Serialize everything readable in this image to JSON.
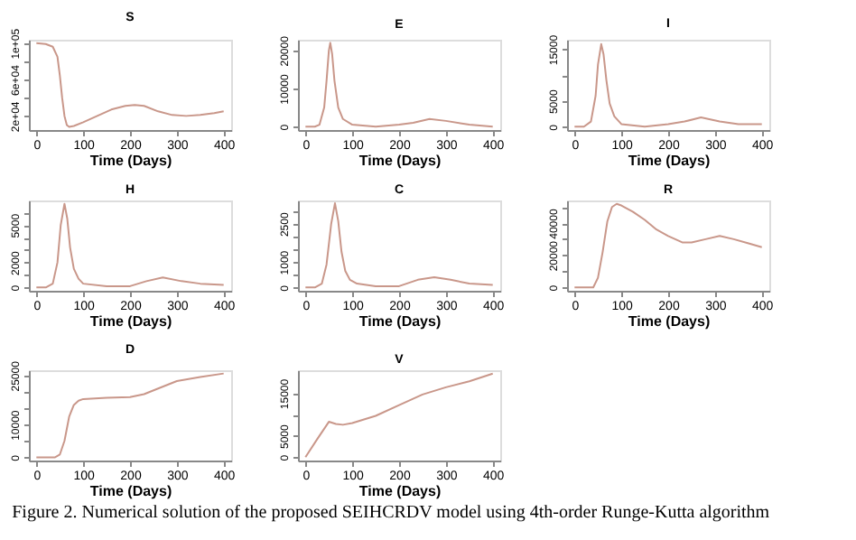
{
  "chart_data": [
    {
      "type": "line",
      "title": "S",
      "xlabel": "Time (Days)",
      "color": "#c9978a",
      "xlim": [
        -16,
        416
      ],
      "xticks": [
        0,
        100,
        200,
        300,
        400
      ],
      "ylim": [
        4500,
        103700
      ],
      "yticks": [
        {
          "value": 20000,
          "label": "2e+04"
        },
        {
          "value": 40000,
          "label": null
        },
        {
          "value": 60000,
          "label": "6e+04"
        },
        {
          "value": 80000,
          "label": null
        },
        {
          "value": 100000,
          "label": "1e+05"
        }
      ],
      "grid": false,
      "x": [
        0,
        20,
        35,
        45,
        50,
        55,
        60,
        65,
        70,
        80,
        100,
        130,
        160,
        190,
        210,
        230,
        260,
        290,
        320,
        350,
        380,
        400
      ],
      "values": [
        100000,
        99000,
        96000,
        85000,
        65000,
        40000,
        20000,
        10000,
        8000,
        9000,
        13000,
        20000,
        27000,
        31000,
        32000,
        31000,
        25000,
        21000,
        20000,
        21000,
        23000,
        25000
      ]
    },
    {
      "type": "line",
      "title": "E",
      "xlabel": "Time (Days)",
      "color": "#c9978a",
      "xlim": [
        -16,
        416
      ],
      "xticks": [
        0,
        100,
        200,
        300,
        400
      ],
      "ylim": [
        -900,
        22800
      ],
      "yticks": [
        0,
        10000,
        20000
      ],
      "grid": false,
      "x": [
        0,
        20,
        30,
        40,
        45,
        50,
        53,
        57,
        62,
        70,
        80,
        100,
        150,
        200,
        230,
        265,
        300,
        350,
        400
      ],
      "values": [
        0,
        0,
        500,
        5000,
        12000,
        20000,
        22000,
        19000,
        12000,
        5000,
        2000,
        500,
        0,
        500,
        1000,
        2000,
        1500,
        500,
        0
      ]
    },
    {
      "type": "line",
      "title": "I",
      "xlabel": "Time (Days)",
      "color": "#c9978a",
      "xlim": [
        -16,
        416
      ],
      "xticks": [
        0,
        100,
        200,
        300,
        400
      ],
      "ylim": [
        -650,
        16850
      ],
      "yticks": [
        0,
        5000,
        {
          "value": 10000,
          "label": null
        },
        15000
      ],
      "grid": false,
      "x": [
        0,
        20,
        35,
        45,
        50,
        57,
        62,
        68,
        75,
        85,
        100,
        150,
        200,
        235,
        270,
        310,
        350,
        400
      ],
      "values": [
        0,
        0,
        1000,
        6000,
        12000,
        16000,
        14000,
        9000,
        4500,
        2000,
        500,
        0,
        500,
        1000,
        1800,
        1000,
        500,
        500
      ]
    },
    {
      "type": "line",
      "title": "H",
      "xlabel": "Time (Days)",
      "color": "#c9978a",
      "xlim": [
        -16,
        416
      ],
      "xticks": [
        0,
        100,
        200,
        300,
        400
      ],
      "ylim": [
        -270,
        6970
      ],
      "yticks": [
        0,
        {
          "value": 1000,
          "label": null
        },
        2000,
        {
          "value": 3000,
          "label": null
        },
        {
          "value": 4000,
          "label": null
        },
        5000,
        {
          "value": 6000,
          "label": null
        }
      ],
      "grid": false,
      "x": [
        0,
        20,
        35,
        45,
        52,
        60,
        66,
        72,
        80,
        90,
        100,
        150,
        200,
        235,
        270,
        310,
        350,
        400
      ],
      "values": [
        0,
        0,
        300,
        2000,
        5000,
        6700,
        5500,
        3200,
        1500,
        700,
        300,
        100,
        100,
        500,
        800,
        500,
        300,
        200
      ]
    },
    {
      "type": "line",
      "title": "C",
      "xlabel": "Time (Days)",
      "color": "#c9978a",
      "xlim": [
        -16,
        416
      ],
      "xticks": [
        0,
        100,
        200,
        300,
        400
      ],
      "ylim": [
        -130,
        3410
      ],
      "yticks": [
        0,
        {
          "value": 500,
          "label": null
        },
        1000,
        {
          "value": 1500,
          "label": null
        },
        {
          "value": 2000,
          "label": null
        },
        2500,
        {
          "value": 3000,
          "label": null
        }
      ],
      "grid": false,
      "x": [
        0,
        20,
        35,
        45,
        55,
        63,
        70,
        77,
        85,
        95,
        110,
        150,
        200,
        240,
        275,
        310,
        350,
        400
      ],
      "values": [
        0,
        0,
        150,
        900,
        2500,
        3300,
        2600,
        1400,
        650,
        300,
        150,
        50,
        50,
        300,
        400,
        300,
        150,
        100
      ]
    },
    {
      "type": "line",
      "title": "R",
      "xlabel": "Time (Days)",
      "color": "#c9978a",
      "xlim": [
        -16,
        416
      ],
      "xticks": [
        0,
        100,
        200,
        300,
        400
      ],
      "ylim": [
        -2100,
        54100
      ],
      "yticks": [
        0,
        {
          "value": 10000,
          "label": null
        },
        20000,
        {
          "value": 30000,
          "label": null
        },
        40000,
        {
          "value": 50000,
          "label": null
        }
      ],
      "grid": false,
      "x": [
        0,
        30,
        40,
        50,
        60,
        70,
        80,
        90,
        100,
        125,
        150,
        175,
        200,
        230,
        250,
        280,
        310,
        340,
        370,
        400
      ],
      "values": [
        0,
        0,
        0,
        6000,
        22000,
        41000,
        50000,
        52000,
        51000,
        47000,
        42000,
        36000,
        32000,
        28000,
        28000,
        30000,
        32000,
        30000,
        27500,
        25000
      ]
    },
    {
      "type": "line",
      "title": "D",
      "xlabel": "Time (Days)",
      "color": "#c9978a",
      "xlim": [
        -16,
        416
      ],
      "xticks": [
        0,
        100,
        200,
        300,
        400
      ],
      "ylim": [
        -1000,
        26600
      ],
      "yticks": [
        0,
        {
          "value": 5000,
          "label": null
        },
        10000,
        {
          "value": 15000,
          "label": null
        },
        {
          "value": 20000,
          "label": null
        },
        25000
      ],
      "grid": false,
      "x": [
        0,
        40,
        50,
        60,
        70,
        80,
        90,
        100,
        150,
        200,
        230,
        260,
        300,
        350,
        400
      ],
      "values": [
        0,
        0,
        800,
        5000,
        12400,
        16000,
        17300,
        17800,
        18200,
        18400,
        19300,
        21000,
        23300,
        24500,
        25600
      ]
    },
    {
      "type": "line",
      "title": "V",
      "xlabel": "Time (Days)",
      "color": "#c9978a",
      "xlim": [
        -16,
        416
      ],
      "xticks": [
        0,
        100,
        200,
        300,
        400
      ],
      "ylim": [
        -800,
        20400
      ],
      "yticks": [
        0,
        5000,
        {
          "value": 10000,
          "label": null
        },
        15000
      ],
      "grid": false,
      "x": [
        0,
        25,
        50,
        65,
        80,
        100,
        150,
        200,
        250,
        300,
        350,
        400
      ],
      "values": [
        0,
        4200,
        8300,
        7800,
        7600,
        8000,
        9700,
        12200,
        14700,
        16400,
        17800,
        19600
      ],
      "annotations": [
        "Figure 2. Numerical solution of the proposed SEIHCRDV model using 4th-order Runge-Kutta algorithm"
      ]
    }
  ]
}
